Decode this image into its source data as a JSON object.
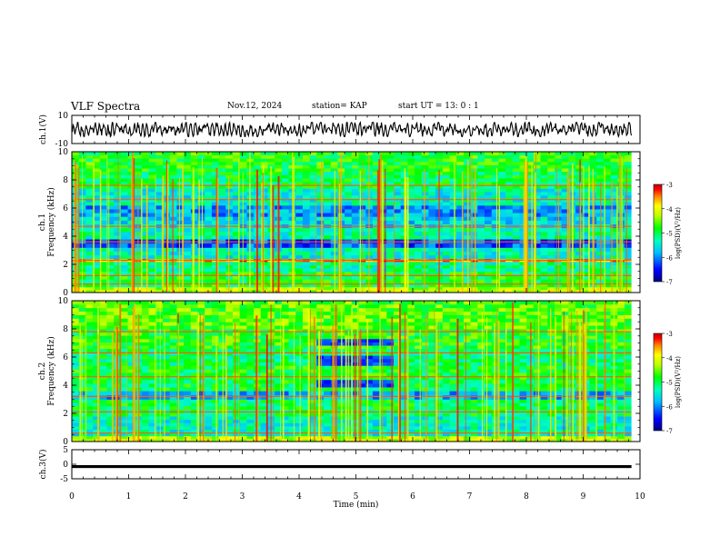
{
  "header": {
    "title": "VLF Spectra",
    "date": "Nov.12, 2024",
    "station": "station= KAP",
    "start": "start  UT =   13: 0   : 1"
  },
  "chart_data": [
    {
      "type": "line",
      "name": "ch1-waveform",
      "ylabel": "ch.1(V)",
      "ylim": [
        -10,
        10
      ],
      "yticks": [
        "10",
        "-10"
      ],
      "xlim": [
        0,
        10
      ],
      "approx_amplitude_range": [
        -5,
        5
      ],
      "color": "#000000"
    },
    {
      "type": "heatmap",
      "name": "ch1-spectrogram",
      "ylabel_top": "ch.1",
      "ylabel": "Frequency (kHz)",
      "ylim": [
        0,
        10
      ],
      "yticks": [
        "0",
        "2",
        "4",
        "6",
        "8",
        "10"
      ],
      "xlim": [
        0,
        10
      ],
      "data_end_min": 9.85,
      "colorbar": {
        "label": "log(PSD)(V²/Hz)",
        "range": [
          -7,
          -3
        ],
        "ticks": [
          "-3",
          "-4",
          "-5",
          "-6",
          "-7"
        ]
      },
      "bands_khz": [
        {
          "from": 0.0,
          "to": 0.4,
          "level": -4.2
        },
        {
          "from": 0.4,
          "to": 1.5,
          "level": -4.9
        },
        {
          "from": 1.5,
          "to": 2.2,
          "level": -5.2
        },
        {
          "from": 2.2,
          "to": 2.4,
          "level": -3.6
        },
        {
          "from": 2.4,
          "to": 3.2,
          "level": -5.4
        },
        {
          "from": 3.2,
          "to": 3.8,
          "level": -6.2
        },
        {
          "from": 3.8,
          "to": 4.6,
          "level": -5.3
        },
        {
          "from": 4.6,
          "to": 5.4,
          "level": -5.6
        },
        {
          "from": 5.4,
          "to": 6.2,
          "level": -5.9
        },
        {
          "from": 6.2,
          "to": 7.4,
          "level": -5.4
        },
        {
          "from": 7.4,
          "to": 8.6,
          "level": -5.0
        },
        {
          "from": 8.6,
          "to": 10.0,
          "level": -4.8
        }
      ],
      "lines_khz": [
        0.6,
        1.2,
        2.3,
        3.6,
        4.7,
        6.6,
        7.6
      ]
    },
    {
      "type": "heatmap",
      "name": "ch2-spectrogram",
      "ylabel_top": "ch.2",
      "ylabel": "Frequency (kHz)",
      "ylim": [
        0,
        10
      ],
      "yticks": [
        "0",
        "2",
        "4",
        "6",
        "8",
        "10"
      ],
      "xlim": [
        0,
        10
      ],
      "data_end_min": 9.85,
      "colorbar": {
        "label": "log(PSD)(V²/Hz)",
        "range": [
          -7,
          -3
        ],
        "ticks": [
          "-3",
          "-4",
          "-5",
          "-6",
          "-7"
        ]
      },
      "bands_khz": [
        {
          "from": 0.0,
          "to": 0.4,
          "level": -4.2
        },
        {
          "from": 0.4,
          "to": 1.8,
          "level": -5.4
        },
        {
          "from": 1.8,
          "to": 3.0,
          "level": -5.0
        },
        {
          "from": 3.0,
          "to": 3.6,
          "level": -5.8
        },
        {
          "from": 3.6,
          "to": 4.4,
          "level": -5.0
        },
        {
          "from": 4.4,
          "to": 5.4,
          "level": -4.9
        },
        {
          "from": 5.4,
          "to": 6.6,
          "level": -5.1
        },
        {
          "from": 6.6,
          "to": 8.0,
          "level": -4.8
        },
        {
          "from": 8.0,
          "to": 10.0,
          "level": -4.6
        }
      ],
      "lines_khz": [
        0.6,
        2.1,
        3.2,
        4.6,
        6.3,
        7.8
      ],
      "blue_patches": [
        {
          "t0": 4.2,
          "t1": 5.6,
          "f0": 3.8,
          "f1": 4.6
        },
        {
          "t0": 4.2,
          "t1": 5.6,
          "f0": 5.2,
          "f1": 6.2
        },
        {
          "t0": 4.2,
          "t1": 5.6,
          "f0": 6.8,
          "f1": 7.4
        }
      ]
    },
    {
      "type": "line",
      "name": "ch3-waveform",
      "ylabel": "ch.3(V)",
      "ylim": [
        -5,
        5
      ],
      "yticks": [
        "5",
        "0",
        "-5"
      ],
      "xlim": [
        0,
        10
      ],
      "xlabel": "Time (min)",
      "xticks": [
        "0",
        "1",
        "2",
        "3",
        "4",
        "5",
        "6",
        "7",
        "8",
        "9",
        "10"
      ],
      "level_v": -0.8,
      "thickness_v": 1.0,
      "data_end_min": 9.85
    }
  ],
  "colors": {
    "colormap": [
      "#000080",
      "#0000ff",
      "#00a0ff",
      "#00ffff",
      "#00ff80",
      "#00ff00",
      "#80ff00",
      "#ffff00",
      "#ffa000",
      "#ff0000",
      "#c00000"
    ]
  }
}
